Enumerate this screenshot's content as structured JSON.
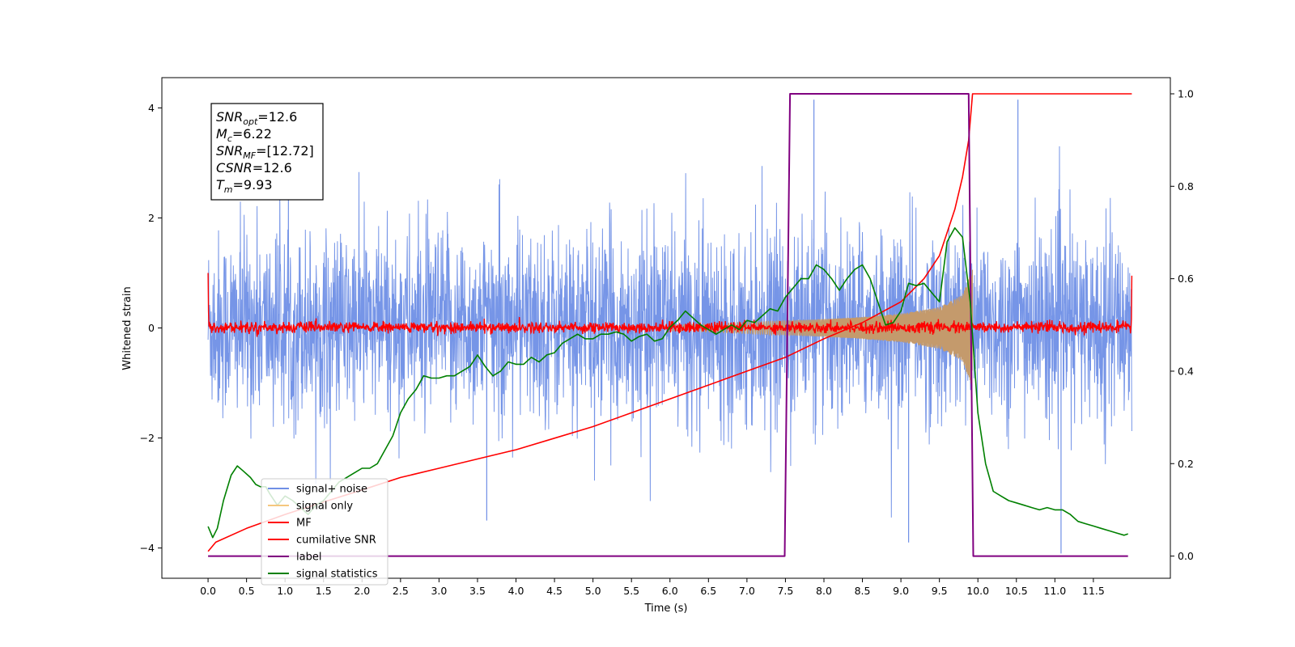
{
  "chart_data": {
    "type": "line",
    "xlabel": "Time (s)",
    "ylabel_left": "Whitened strain",
    "xlim": [
      -0.6,
      12.5
    ],
    "ylim_left": [
      -4.55,
      4.55
    ],
    "ylim_right": [
      -0.048,
      1.035
    ],
    "x_ticks": [
      0.0,
      0.5,
      1.0,
      1.5,
      2.0,
      2.5,
      3.0,
      3.5,
      4.0,
      4.5,
      5.0,
      5.5,
      6.0,
      6.5,
      7.0,
      7.5,
      8.0,
      8.5,
      9.0,
      9.5,
      10.0,
      10.5,
      11.0,
      11.5
    ],
    "x_tick_labels": [
      "0.0",
      "0.5",
      "1.0",
      "1.5",
      "2.0",
      "2.5",
      "3.0",
      "3.5",
      "4.0",
      "4.5",
      "5.0",
      "5.5",
      "6.0",
      "6.5",
      "7.0",
      "7.5",
      "8.0",
      "8.5",
      "9.0",
      "9.5",
      "10.0",
      "10.5",
      "11.0",
      "11.5"
    ],
    "y_left_ticks": [
      -4,
      -2,
      0,
      2,
      4
    ],
    "y_left_tick_labels": [
      "−4",
      "−2",
      "0",
      "2",
      "4"
    ],
    "y_right_ticks": [
      0.0,
      0.2,
      0.4,
      0.6,
      0.8,
      1.0
    ],
    "y_right_tick_labels": [
      "0.0",
      "0.2",
      "0.4",
      "0.6",
      "0.8",
      "1.0"
    ],
    "legend": {
      "placement": "lower-left",
      "entries": [
        {
          "label": "signal+ noise",
          "color": "#6f8fe6"
        },
        {
          "label": "signal only",
          "color": "#f5c77e"
        },
        {
          "label": "MF",
          "color": "#ff0000"
        },
        {
          "label": "cumilative SNR",
          "color": "#ff0000"
        },
        {
          "label": "label",
          "color": "#800080"
        },
        {
          "label": "signal statistics",
          "color": "#008000"
        }
      ]
    },
    "annotation": {
      "lines": [
        {
          "base": "SNR",
          "sub": "opt",
          "value": "=12.6"
        },
        {
          "base": "M",
          "sub": "c",
          "value": "=6.22"
        },
        {
          "base": "SNR",
          "sub": "MF",
          "value": "=[12.72]"
        },
        {
          "base": "CSNR",
          "sub": "",
          "value": "=12.6"
        },
        {
          "base": "T",
          "sub": "m",
          "value": "=9.93"
        }
      ]
    },
    "series": [
      {
        "name": "signal+ noise",
        "axis": "left",
        "color": "#6f8fe6",
        "x_range": [
          0.0,
          12.0
        ],
        "typical_band": [
          -1.9,
          2.0
        ],
        "notable_peaks": [
          {
            "x": 7.87,
            "y": 4.15
          },
          {
            "x": 10.52,
            "y": 4.15
          },
          {
            "x": 11.08,
            "y": -4.1
          },
          {
            "x": 9.1,
            "y": -3.9
          },
          {
            "x": 3.62,
            "y": -3.5
          }
        ]
      },
      {
        "name": "signal only",
        "axis": "left",
        "color": "#c49a6c",
        "x_range": [
          6.0,
          9.93
        ],
        "amplitude_envelope": [
          [
            6.0,
            0.05
          ],
          [
            7.0,
            0.1
          ],
          [
            8.0,
            0.16
          ],
          [
            8.5,
            0.2
          ],
          [
            9.0,
            0.26
          ],
          [
            9.5,
            0.38
          ],
          [
            9.8,
            0.6
          ],
          [
            9.93,
            1.1
          ]
        ]
      },
      {
        "name": "MF",
        "axis": "left",
        "color": "#ff0000",
        "x_range": [
          0.0,
          12.0
        ],
        "typical_band": [
          -0.1,
          0.12
        ],
        "edge_values": [
          {
            "x": 0.0,
            "y": 1.0
          },
          {
            "x": 12.0,
            "y": 0.95
          }
        ]
      },
      {
        "name": "cumilative SNR",
        "axis": "right",
        "color": "#ff0000",
        "x": [
          0.0,
          0.1,
          0.5,
          1.0,
          1.5,
          2.0,
          2.5,
          3.0,
          3.5,
          4.0,
          4.5,
          5.0,
          5.5,
          6.0,
          6.5,
          7.0,
          7.5,
          8.0,
          8.5,
          9.0,
          9.3,
          9.5,
          9.7,
          9.8,
          9.88,
          9.93,
          12.0
        ],
        "y": [
          0.01,
          0.03,
          0.06,
          0.09,
          0.117,
          0.143,
          0.17,
          0.19,
          0.21,
          0.23,
          0.255,
          0.28,
          0.31,
          0.34,
          0.37,
          0.4,
          0.43,
          0.47,
          0.505,
          0.55,
          0.6,
          0.65,
          0.75,
          0.82,
          0.9,
          1.0,
          1.0
        ]
      },
      {
        "name": "label",
        "axis": "right",
        "color": "#800080",
        "x": [
          0.0,
          7.49,
          7.56,
          9.88,
          9.94,
          11.95
        ],
        "y": [
          0.0,
          0.0,
          1.0,
          1.0,
          0.0,
          0.0
        ]
      },
      {
        "name": "signal statistics",
        "axis": "right",
        "color": "#008000",
        "x": [
          0.0,
          0.06,
          0.12,
          0.2,
          0.3,
          0.38,
          0.45,
          0.55,
          0.62,
          0.68,
          0.75,
          0.8,
          0.9,
          1.0,
          1.1,
          1.2,
          1.3,
          1.4,
          1.5,
          1.6,
          1.7,
          1.8,
          1.9,
          2.0,
          2.1,
          2.2,
          2.3,
          2.4,
          2.5,
          2.6,
          2.7,
          2.8,
          2.9,
          3.0,
          3.1,
          3.2,
          3.3,
          3.4,
          3.5,
          3.6,
          3.7,
          3.8,
          3.9,
          4.0,
          4.1,
          4.2,
          4.3,
          4.4,
          4.5,
          4.6,
          4.7,
          4.8,
          4.9,
          5.0,
          5.1,
          5.2,
          5.3,
          5.4,
          5.5,
          5.6,
          5.7,
          5.8,
          5.9,
          6.0,
          6.1,
          6.2,
          6.3,
          6.4,
          6.5,
          6.6,
          6.7,
          6.8,
          6.9,
          7.0,
          7.1,
          7.2,
          7.3,
          7.4,
          7.5,
          7.6,
          7.7,
          7.8,
          7.9,
          8.0,
          8.1,
          8.2,
          8.3,
          8.4,
          8.5,
          8.6,
          8.7,
          8.8,
          8.9,
          9.0,
          9.1,
          9.2,
          9.3,
          9.4,
          9.5,
          9.6,
          9.7,
          9.8,
          9.9,
          10.0,
          10.1,
          10.2,
          10.3,
          10.4,
          10.5,
          10.6,
          10.7,
          10.8,
          10.9,
          11.0,
          11.1,
          11.2,
          11.3,
          11.4,
          11.5,
          11.6,
          11.7,
          11.8,
          11.9,
          11.95
        ],
        "y": [
          0.064,
          0.04,
          0.06,
          0.12,
          0.175,
          0.195,
          0.185,
          0.17,
          0.155,
          0.15,
          0.15,
          0.135,
          0.11,
          0.13,
          0.12,
          0.105,
          0.09,
          0.11,
          0.12,
          0.14,
          0.16,
          0.17,
          0.18,
          0.19,
          0.19,
          0.2,
          0.23,
          0.26,
          0.31,
          0.34,
          0.36,
          0.39,
          0.385,
          0.385,
          0.39,
          0.39,
          0.4,
          0.41,
          0.435,
          0.41,
          0.39,
          0.4,
          0.42,
          0.415,
          0.415,
          0.43,
          0.42,
          0.435,
          0.44,
          0.46,
          0.47,
          0.48,
          0.47,
          0.47,
          0.48,
          0.48,
          0.485,
          0.48,
          0.465,
          0.475,
          0.48,
          0.465,
          0.47,
          0.495,
          0.51,
          0.53,
          0.515,
          0.5,
          0.49,
          0.48,
          0.49,
          0.5,
          0.49,
          0.51,
          0.505,
          0.52,
          0.535,
          0.53,
          0.56,
          0.58,
          0.6,
          0.6,
          0.63,
          0.62,
          0.6,
          0.575,
          0.6,
          0.62,
          0.63,
          0.6,
          0.55,
          0.5,
          0.505,
          0.53,
          0.59,
          0.585,
          0.59,
          0.57,
          0.55,
          0.68,
          0.71,
          0.69,
          0.55,
          0.31,
          0.2,
          0.14,
          0.13,
          0.12,
          0.115,
          0.11,
          0.105,
          0.1,
          0.105,
          0.1,
          0.1,
          0.09,
          0.075,
          0.07,
          0.065,
          0.06,
          0.055,
          0.05,
          0.045,
          0.048
        ]
      }
    ]
  }
}
